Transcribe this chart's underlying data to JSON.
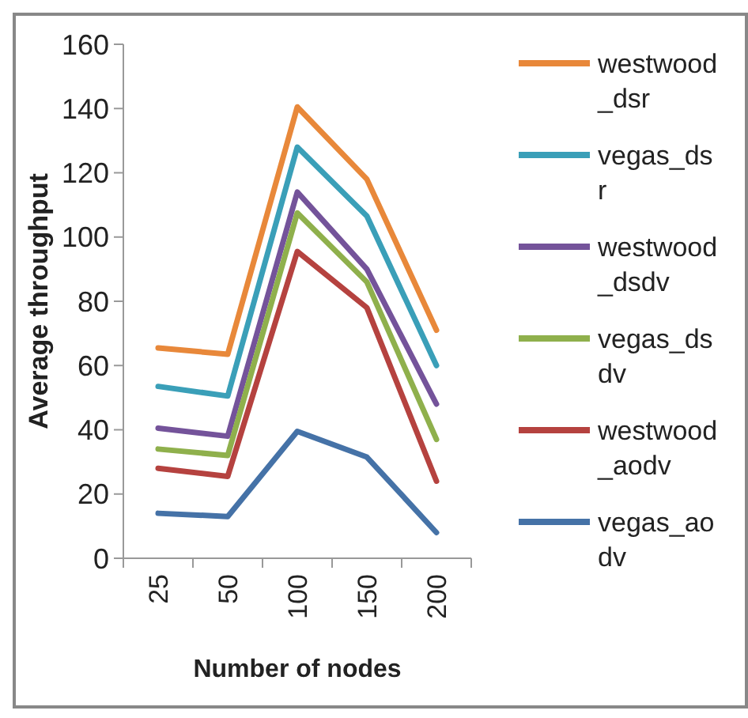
{
  "chart_data": {
    "type": "line",
    "xlabel": "Number of nodes",
    "ylabel": "Average throughput",
    "categories": [
      "25",
      "50",
      "100",
      "150",
      "200"
    ],
    "series": [
      {
        "name": "westwood_dsr",
        "color": "#e8883a",
        "values": [
          65.5,
          63.5,
          140.5,
          118,
          71
        ]
      },
      {
        "name": "vegas_dsr",
        "color": "#3a9fb8",
        "values": [
          53.5,
          50.5,
          128,
          106.5,
          60
        ]
      },
      {
        "name": "westwood_dsdv",
        "color": "#74539a",
        "values": [
          40.5,
          38,
          114,
          90,
          48
        ]
      },
      {
        "name": "vegas_dsdv",
        "color": "#8fb04c",
        "values": [
          34,
          32,
          107.5,
          86,
          37
        ]
      },
      {
        "name": "westwood_aodv",
        "color": "#b5423f",
        "values": [
          28,
          25.5,
          95.5,
          78,
          24
        ]
      },
      {
        "name": "vegas_aodv",
        "color": "#4572a7",
        "values": [
          14,
          13,
          39.5,
          31.5,
          8
        ]
      }
    ],
    "ylim": [
      0,
      160
    ],
    "yticks": [
      0,
      20,
      40,
      60,
      80,
      100,
      120,
      140,
      160
    ],
    "legend": "right",
    "marker": "none",
    "line_style": "solid"
  }
}
